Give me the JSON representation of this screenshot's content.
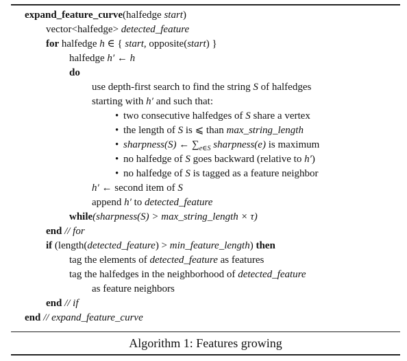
{
  "algorithm": {
    "caption": "Algorithm 1: Features growing",
    "header": {
      "func_name": "expand_feature_curve",
      "open": "(halfedge ",
      "param": "start",
      "close": ")"
    },
    "vector_decl": {
      "type": "vector<halfedge> ",
      "name": "detected_feature"
    },
    "for_line": {
      "kw": "for",
      "text_a": " halfedge ",
      "h": "h",
      "in": " ∈ { ",
      "start": "start",
      "text_b": ", opposite(",
      "start2": "start",
      "text_c": ") }"
    },
    "assign_line": {
      "text_a": "halfedge ",
      "hp": "h′",
      "arrow": " ← ",
      "h": "h"
    },
    "do_kw": "do",
    "dfs_line1": {
      "text_a": "use depth-first search to find the string ",
      "S": "S",
      "text_b": " of halfedges"
    },
    "dfs_line2": {
      "text_a": "starting with ",
      "hp": "h′",
      "text_b": " and such that:"
    },
    "bullets": {
      "b1": {
        "text_a": "two consecutive halfedges of ",
        "S": "S",
        "text_b": " share a vertex"
      },
      "b2": {
        "text_a": "the length of ",
        "S": "S",
        "text_b": " is ⩽ than ",
        "var": "max_string_length"
      },
      "b3": {
        "sharp": "sharpness(S)",
        "arrow": " ← ",
        "sum": "∑",
        "sub": "e∈S",
        "sharp2": " sharpness(e)",
        "text": " is maximum"
      },
      "b4": {
        "text_a": "no halfedge of ",
        "S": "S",
        "text_b": " goes backward (relative to ",
        "hp": "h′",
        "text_c": ")"
      },
      "b5": {
        "text_a": "no halfedge of ",
        "S": "S",
        "text_b": " is tagged as a feature neighbor"
      }
    },
    "second_line": {
      "hp": "h′",
      "text_a": " ← second item of ",
      "S": "S"
    },
    "append_line": {
      "text_a": "append ",
      "hp": "h′",
      "text_b": " to ",
      "var": "detected_feature"
    },
    "while_line": {
      "kw": "while",
      "expr": "(sharpness(S) > max_string_length × τ)"
    },
    "end_for": {
      "kw": "end",
      "comment": " // for"
    },
    "if_line": {
      "kw": "if",
      "text_a": " (length(",
      "var1": "detected_feature",
      "text_b": ") > ",
      "var2": "min_feature_length",
      "text_c": ") ",
      "then": "then"
    },
    "tag1": {
      "text_a": "tag the elements of ",
      "var": "detected_feature",
      "text_b": " as features"
    },
    "tag2": {
      "text_a": "tag the halfedges in the neighborhood of ",
      "var": "detected_feature"
    },
    "tag2b": "as feature neighbors",
    "end_if": {
      "kw": "end",
      "comment": " // if"
    },
    "end_func": {
      "kw": "end",
      "comment": " // expand_feature_curve"
    }
  }
}
